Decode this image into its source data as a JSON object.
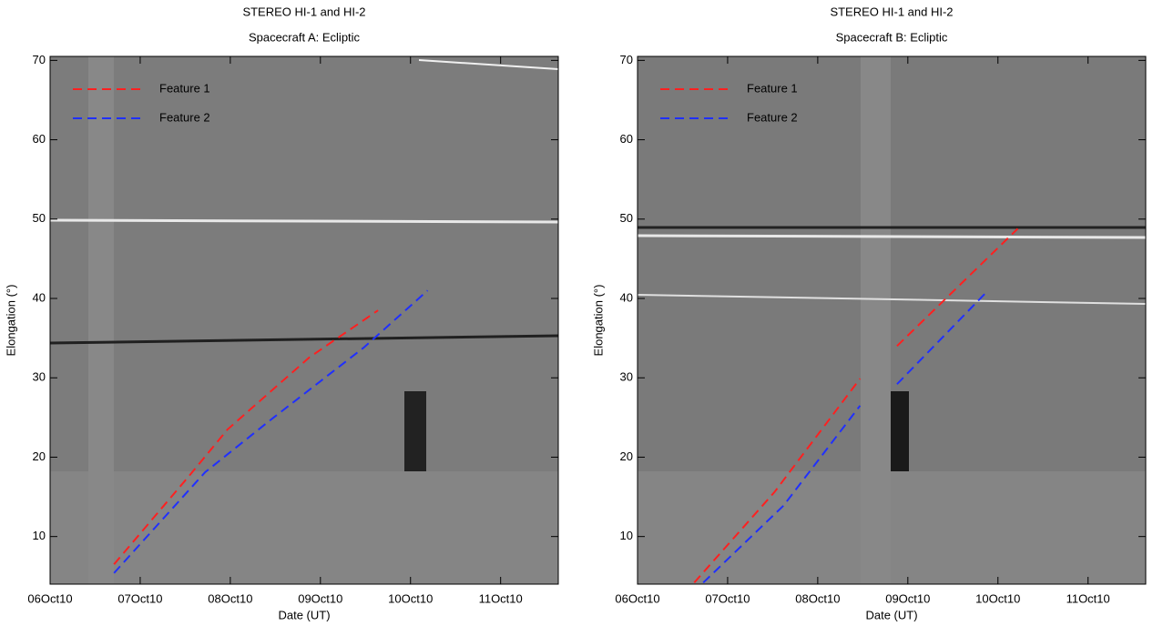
{
  "chart_data": [
    {
      "type": "line",
      "title": "STEREO HI-1 and HI-2",
      "subtitle": "Spacecraft A: Ecliptic",
      "xlabel": "Date (UT)",
      "ylabel": "Elongation (°)",
      "xlim": [
        6,
        11.64
      ],
      "ylim": [
        4,
        70.5
      ],
      "xticks": [
        {
          "value": 6,
          "label": "06Oct10"
        },
        {
          "value": 7,
          "label": "07Oct10"
        },
        {
          "value": 8,
          "label": "08Oct10"
        },
        {
          "value": 9,
          "label": "09Oct10"
        },
        {
          "value": 10,
          "label": "10Oct10"
        },
        {
          "value": 11,
          "label": "11Oct10"
        }
      ],
      "yticks": [
        10,
        20,
        30,
        40,
        50,
        60,
        70
      ],
      "legend": "upper left",
      "line_style": "dashed",
      "series": [
        {
          "name": "Feature 1",
          "color": "#ff2020",
          "x": [
            6.71,
            7.57,
            7.97,
            8.88,
            9.64
          ],
          "values": [
            6.5,
            18,
            23.5,
            32.6,
            38.5
          ]
        },
        {
          "name": "Feature 2",
          "color": "#2030ff",
          "x": [
            6.71,
            7.72,
            8.47,
            9.48,
            10.19
          ],
          "values": [
            5.4,
            18.1,
            24.9,
            33.8,
            41
          ]
        }
      ]
    },
    {
      "type": "line",
      "title": "STEREO HI-1 and HI-2",
      "subtitle": "Spacecraft B: Ecliptic",
      "xlabel": "Date (UT)",
      "ylabel": "Elongation (°)",
      "xlim": [
        6,
        11.64
      ],
      "ylim": [
        4,
        70.5
      ],
      "xticks": [
        {
          "value": 6,
          "label": "06Oct10"
        },
        {
          "value": 7,
          "label": "07Oct10"
        },
        {
          "value": 8,
          "label": "08Oct10"
        },
        {
          "value": 9,
          "label": "09Oct10"
        },
        {
          "value": 10,
          "label": "10Oct10"
        },
        {
          "value": 11,
          "label": "11Oct10"
        }
      ],
      "yticks": [
        10,
        20,
        30,
        40,
        50,
        60,
        70
      ],
      "legend": "upper left",
      "line_style": "dashed",
      "series": [
        {
          "name": "Feature 1",
          "color": "#ff2020",
          "x": [
            6.63,
            7.52,
            8.47,
            null,
            8.88,
            10.22
          ],
          "values": [
            4.2,
            15.6,
            29.9,
            null,
            34,
            48.8
          ]
        },
        {
          "name": "Feature 2",
          "color": "#2030ff",
          "x": [
            6.73,
            7.62,
            8.47,
            null,
            8.88,
            9.89
          ],
          "values": [
            4.2,
            13.9,
            26.5,
            null,
            29.2,
            41
          ]
        }
      ]
    }
  ]
}
